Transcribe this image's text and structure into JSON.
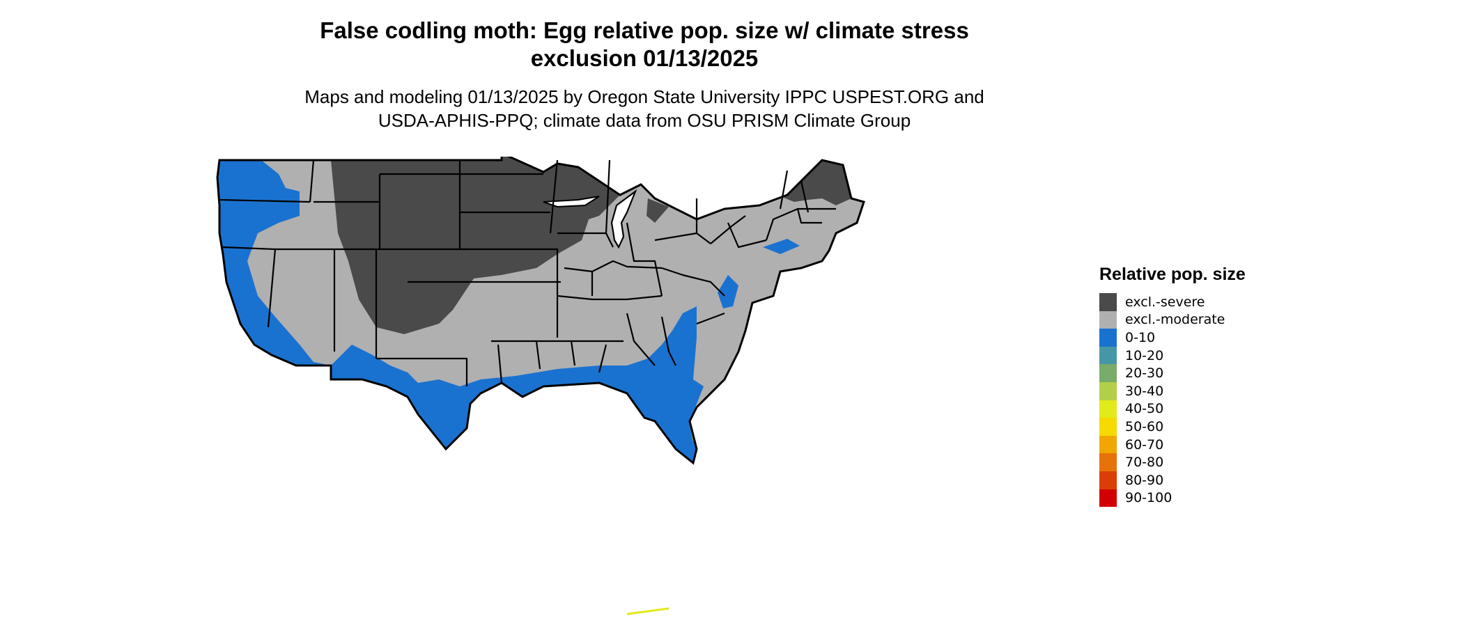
{
  "title": {
    "line1": "False codling moth: Egg relative pop. size w/ climate stress",
    "line2": "exclusion 01/13/2025"
  },
  "subtitle": {
    "line1": "Maps and modeling 01/13/2025 by Oregon State University IPPC USPEST.ORG and",
    "line2": "USDA-APHIS-PPQ; climate data from OSU PRISM Climate Group"
  },
  "legend": {
    "title": "Relative pop. size",
    "items": [
      {
        "label": "excl.-severe",
        "color": "#4a4a4a"
      },
      {
        "label": "excl.-moderate",
        "color": "#b0b0b0"
      },
      {
        "label": "0-10",
        "color": "#1a72d0"
      },
      {
        "label": "10-20",
        "color": "#4597a6"
      },
      {
        "label": "20-30",
        "color": "#79ab6a"
      },
      {
        "label": "30-40",
        "color": "#b3ce48"
      },
      {
        "label": "40-50",
        "color": "#e2ea1a"
      },
      {
        "label": "50-60",
        "color": "#f6da00"
      },
      {
        "label": "60-70",
        "color": "#f1a700"
      },
      {
        "label": "70-80",
        "color": "#e8720a"
      },
      {
        "label": "80-90",
        "color": "#db3d04"
      },
      {
        "label": "90-100",
        "color": "#d20000"
      }
    ]
  }
}
